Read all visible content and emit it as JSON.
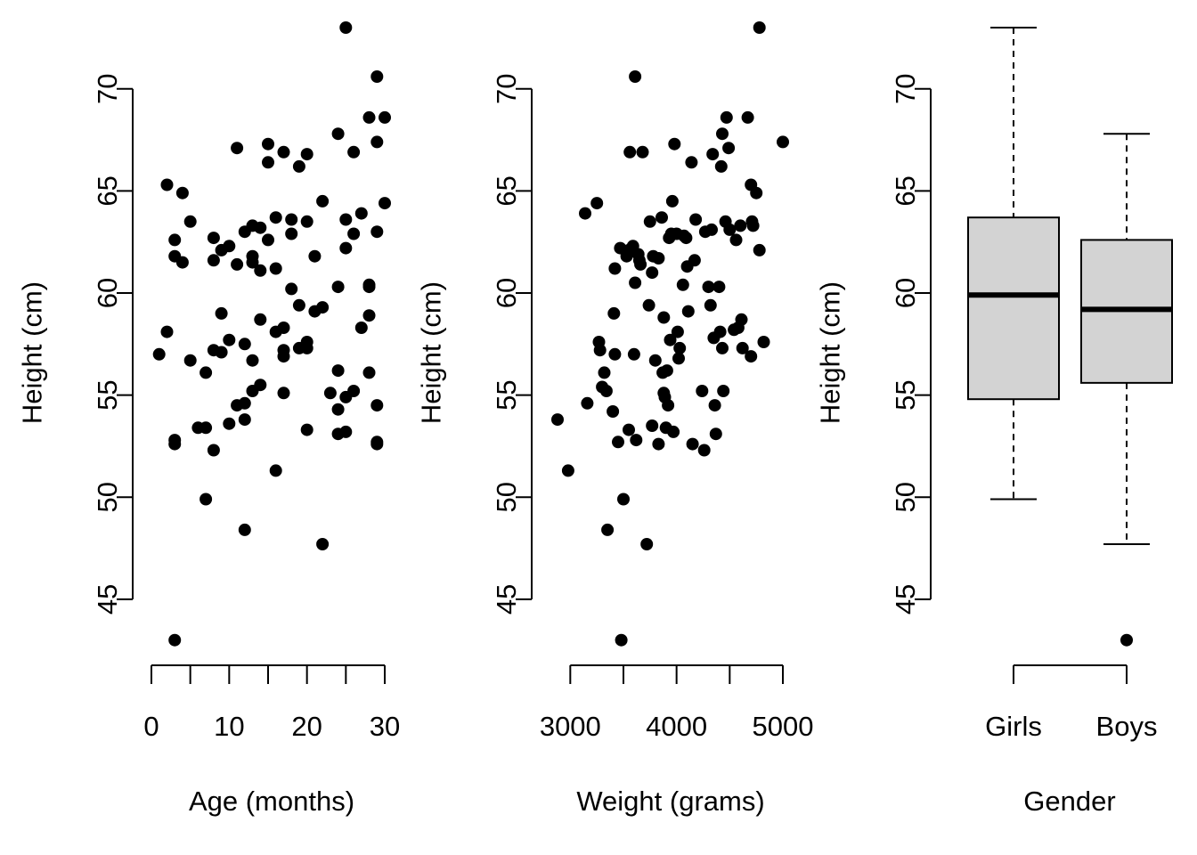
{
  "chart_data": [
    {
      "type": "scatter",
      "xlabel": "Age (months)",
      "ylabel": "Height (cm)",
      "x_ticks": [
        "0",
        "10",
        "20",
        "30"
      ],
      "x_tick_values": [
        0,
        10,
        20,
        30
      ],
      "y_ticks": [
        "45",
        "50",
        "55",
        "60",
        "65",
        "70"
      ],
      "y_tick_values": [
        45,
        50,
        55,
        60,
        65,
        70
      ],
      "xlim": [
        0,
        30
      ],
      "ylim": [
        42.9,
        73.0
      ],
      "grid": false,
      "points": [
        [
          1,
          57.0
        ],
        [
          2,
          65.3
        ],
        [
          2,
          58.1
        ],
        [
          3,
          62.6
        ],
        [
          3,
          61.8
        ],
        [
          3,
          52.8
        ],
        [
          3,
          52.6
        ],
        [
          3,
          43.0
        ],
        [
          4,
          64.9
        ],
        [
          4,
          61.5
        ],
        [
          5,
          63.5
        ],
        [
          5,
          56.7
        ],
        [
          6,
          53.4
        ],
        [
          7,
          56.1
        ],
        [
          7,
          53.4
        ],
        [
          7,
          49.9
        ],
        [
          8,
          62.7
        ],
        [
          8,
          61.6
        ],
        [
          8,
          57.2
        ],
        [
          8,
          52.3
        ],
        [
          9,
          62.1
        ],
        [
          9,
          59.0
        ],
        [
          9,
          57.1
        ],
        [
          10,
          62.3
        ],
        [
          10,
          57.7
        ],
        [
          10,
          53.6
        ],
        [
          11,
          67.1
        ],
        [
          11,
          61.4
        ],
        [
          11,
          54.5
        ],
        [
          12,
          63.0
        ],
        [
          12,
          57.5
        ],
        [
          12,
          54.6
        ],
        [
          12,
          53.8
        ],
        [
          12,
          48.4
        ],
        [
          13,
          63.3
        ],
        [
          13,
          61.8
        ],
        [
          13,
          61.5
        ],
        [
          13,
          56.7
        ],
        [
          13,
          55.2
        ],
        [
          14,
          63.2
        ],
        [
          14,
          61.1
        ],
        [
          14,
          58.7
        ],
        [
          14,
          55.5
        ],
        [
          15,
          67.3
        ],
        [
          15,
          66.4
        ],
        [
          15,
          62.6
        ],
        [
          16,
          63.7
        ],
        [
          16,
          61.2
        ],
        [
          16,
          58.1
        ],
        [
          16,
          51.3
        ],
        [
          17,
          66.9
        ],
        [
          17,
          58.3
        ],
        [
          17,
          57.2
        ],
        [
          17,
          56.9
        ],
        [
          17,
          55.1
        ],
        [
          18,
          63.6
        ],
        [
          18,
          62.9
        ],
        [
          18,
          60.2
        ],
        [
          19,
          66.2
        ],
        [
          19,
          59.4
        ],
        [
          19,
          57.3
        ],
        [
          20,
          66.8
        ],
        [
          20,
          63.5
        ],
        [
          20,
          57.6
        ],
        [
          20,
          57.3
        ],
        [
          20,
          53.3
        ],
        [
          21,
          61.8
        ],
        [
          21,
          59.1
        ],
        [
          22,
          64.5
        ],
        [
          22,
          59.3
        ],
        [
          22,
          47.7
        ],
        [
          23,
          55.1
        ],
        [
          24,
          67.8
        ],
        [
          24,
          60.3
        ],
        [
          24,
          56.2
        ],
        [
          24,
          54.3
        ],
        [
          24,
          53.1
        ],
        [
          25,
          73.0
        ],
        [
          25,
          63.6
        ],
        [
          25,
          62.2
        ],
        [
          25,
          54.9
        ],
        [
          25,
          53.2
        ],
        [
          26,
          66.9
        ],
        [
          26,
          62.9
        ],
        [
          26,
          55.2
        ],
        [
          27,
          63.9
        ],
        [
          27,
          58.3
        ],
        [
          28,
          68.6
        ],
        [
          28,
          60.4
        ],
        [
          28,
          60.3
        ],
        [
          28,
          58.9
        ],
        [
          28,
          56.1
        ],
        [
          29,
          70.6
        ],
        [
          29,
          67.4
        ],
        [
          29,
          63.0
        ],
        [
          29,
          54.5
        ],
        [
          29,
          52.7
        ],
        [
          29,
          52.6
        ],
        [
          30,
          68.6
        ],
        [
          30,
          64.4
        ]
      ]
    },
    {
      "type": "scatter",
      "xlabel": "Weight (grams)",
      "ylabel": "Height (cm)",
      "x_ticks": [
        "3000",
        "4000",
        "5000"
      ],
      "x_tick_values": [
        3000,
        4000,
        5000
      ],
      "y_ticks": [
        "45",
        "50",
        "55",
        "60",
        "65",
        "70"
      ],
      "y_tick_values": [
        45,
        50,
        55,
        60,
        65,
        70
      ],
      "xlim": [
        2880,
        5000
      ],
      "ylim": [
        42.9,
        73.0
      ],
      "grid": false,
      "points": [
        [
          2880,
          53.8
        ],
        [
          2980,
          51.3
        ],
        [
          3140,
          63.9
        ],
        [
          3160,
          54.6
        ],
        [
          3250,
          64.4
        ],
        [
          3270,
          57.6
        ],
        [
          3280,
          57.2
        ],
        [
          3300,
          55.4
        ],
        [
          3320,
          56.1
        ],
        [
          3340,
          55.2
        ],
        [
          3350,
          48.4
        ],
        [
          3400,
          54.2
        ],
        [
          3410,
          59.0
        ],
        [
          3420,
          61.2
        ],
        [
          3420,
          57.0
        ],
        [
          3450,
          52.7
        ],
        [
          3470,
          62.2
        ],
        [
          3480,
          43.0
        ],
        [
          3500,
          49.9
        ],
        [
          3530,
          61.8
        ],
        [
          3550,
          62.1
        ],
        [
          3550,
          53.3
        ],
        [
          3560,
          66.9
        ],
        [
          3590,
          62.3
        ],
        [
          3600,
          57.0
        ],
        [
          3610,
          70.6
        ],
        [
          3610,
          60.5
        ],
        [
          3620,
          52.8
        ],
        [
          3640,
          61.9
        ],
        [
          3650,
          61.6
        ],
        [
          3660,
          61.4
        ],
        [
          3680,
          66.9
        ],
        [
          3720,
          47.7
        ],
        [
          3740,
          59.4
        ],
        [
          3750,
          63.5
        ],
        [
          3770,
          61.0
        ],
        [
          3770,
          53.5
        ],
        [
          3780,
          61.8
        ],
        [
          3800,
          56.7
        ],
        [
          3830,
          61.7
        ],
        [
          3830,
          52.6
        ],
        [
          3860,
          63.7
        ],
        [
          3870,
          56.1
        ],
        [
          3880,
          58.8
        ],
        [
          3880,
          55.1
        ],
        [
          3890,
          54.9
        ],
        [
          3900,
          53.4
        ],
        [
          3910,
          56.2
        ],
        [
          3920,
          54.5
        ],
        [
          3930,
          62.7
        ],
        [
          3940,
          57.7
        ],
        [
          3950,
          62.9
        ],
        [
          3960,
          64.5
        ],
        [
          3970,
          53.2
        ],
        [
          3980,
          67.3
        ],
        [
          4000,
          62.9
        ],
        [
          4010,
          58.1
        ],
        [
          4020,
          56.8
        ],
        [
          4030,
          57.3
        ],
        [
          4060,
          60.4
        ],
        [
          4070,
          62.8
        ],
        [
          4090,
          62.7
        ],
        [
          4100,
          61.3
        ],
        [
          4110,
          59.1
        ],
        [
          4140,
          66.4
        ],
        [
          4150,
          52.6
        ],
        [
          4170,
          61.6
        ],
        [
          4180,
          63.6
        ],
        [
          4240,
          55.2
        ],
        [
          4260,
          52.3
        ],
        [
          4270,
          63.0
        ],
        [
          4300,
          60.3
        ],
        [
          4320,
          59.4
        ],
        [
          4330,
          63.1
        ],
        [
          4340,
          66.8
        ],
        [
          4350,
          57.8
        ],
        [
          4360,
          54.5
        ],
        [
          4370,
          53.1
        ],
        [
          4400,
          60.3
        ],
        [
          4410,
          58.1
        ],
        [
          4420,
          66.2
        ],
        [
          4430,
          57.3
        ],
        [
          4430,
          67.8
        ],
        [
          4440,
          55.2
        ],
        [
          4460,
          63.5
        ],
        [
          4470,
          68.6
        ],
        [
          4490,
          67.1
        ],
        [
          4500,
          63.1
        ],
        [
          4540,
          58.2
        ],
        [
          4560,
          62.6
        ],
        [
          4580,
          58.3
        ],
        [
          4600,
          63.3
        ],
        [
          4610,
          58.7
        ],
        [
          4620,
          57.3
        ],
        [
          4670,
          68.6
        ],
        [
          4700,
          65.3
        ],
        [
          4700,
          56.9
        ],
        [
          4710,
          63.5
        ],
        [
          4720,
          63.3
        ],
        [
          4750,
          64.9
        ],
        [
          4780,
          73.0
        ],
        [
          4780,
          62.1
        ],
        [
          4820,
          57.6
        ],
        [
          5000,
          67.4
        ]
      ]
    },
    {
      "type": "boxplot",
      "xlabel": "Gender",
      "ylabel": "Height (cm)",
      "categories": [
        "Girls",
        "Boys"
      ],
      "y_ticks": [
        "45",
        "50",
        "55",
        "60",
        "65",
        "70"
      ],
      "y_tick_values": [
        45,
        50,
        55,
        60,
        65,
        70
      ],
      "ylim": [
        42.9,
        73.0
      ],
      "grid": false,
      "boxes": [
        {
          "category": "Girls",
          "lower_whisker": 49.9,
          "q1": 54.8,
          "median": 59.9,
          "q3": 63.7,
          "upper_whisker": 73.0,
          "outliers": []
        },
        {
          "category": "Boys",
          "lower_whisker": 47.7,
          "q1": 55.6,
          "median": 59.2,
          "q3": 62.6,
          "upper_whisker": 67.8,
          "outliers": [
            43.0
          ]
        }
      ]
    }
  ]
}
